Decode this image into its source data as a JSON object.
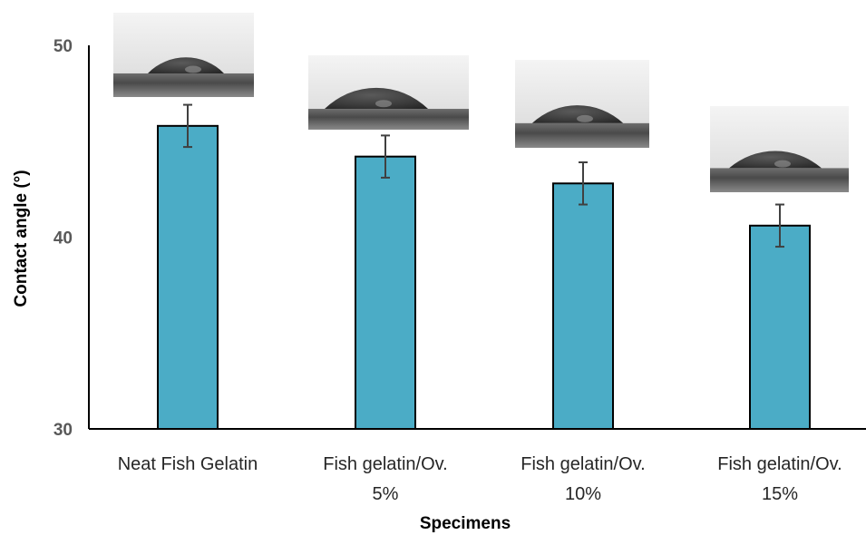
{
  "chart_data": {
    "type": "bar",
    "xlabel": "Specimens",
    "ylabel": "Contact angle (°)",
    "ylim": [
      30,
      50
    ],
    "yticks": [
      30,
      40,
      50
    ],
    "categories": [
      [
        "Neat Fish Gelatin"
      ],
      [
        "Fish gelatin/Ov.",
        "5%"
      ],
      [
        "Fish gelatin/Ov.",
        "10%"
      ],
      [
        "Fish gelatin/Ov.",
        "15%"
      ]
    ],
    "values": [
      45.8,
      44.2,
      42.8,
      40.6
    ],
    "errors": [
      1.1,
      1.1,
      1.1,
      1.1
    ],
    "bar_color": "#4BACC6",
    "bar_edge_color": "#000000",
    "error_bar_color": "#404040",
    "grid": false,
    "legend": "none",
    "droplet_images": [
      {
        "name": "droplet-image-neat",
        "contact_angle_shown": 45.8
      },
      {
        "name": "droplet-image-5",
        "contact_angle_shown": 44.2
      },
      {
        "name": "droplet-image-10",
        "contact_angle_shown": 42.8
      },
      {
        "name": "droplet-image-15",
        "contact_angle_shown": 40.6
      }
    ]
  }
}
